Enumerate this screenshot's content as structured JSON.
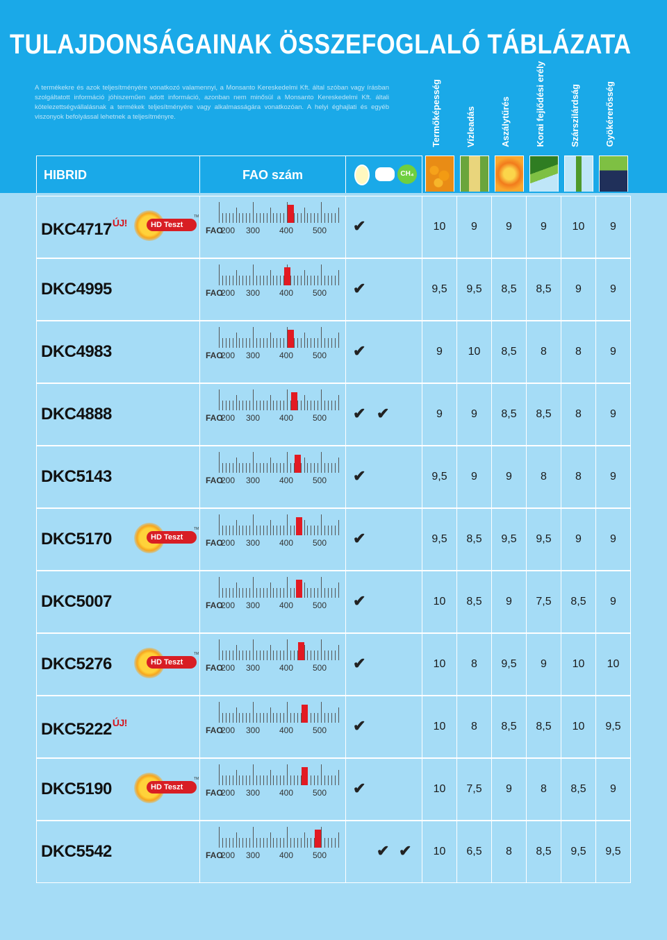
{
  "header": {
    "title": "TULAJDONSÁGAINAK ÖSSZEFOGLALÓ TÁBLÁZATA",
    "disclaimer": "A termékekre és azok teljesítményére vonatkozó valamennyi, a Monsanto Kereskedelmi Kft. által szóban vagy írásban szolgáltatott információ jóhiszeműen adott információ, azonban nem minősül a Monsanto Kereskedelmi Kft. általi kötelezettségvállalásnak a termékek teljesítményére vagy alkalmasságára vonatkozóan. A helyi éghajlati és egyéb viszonyok befolyással lehetnek a teljesítményre."
  },
  "columns": {
    "hibrid": "HIBRID",
    "fao": "FAO szám",
    "ch4": "CH₄",
    "traits": [
      "Termőképesség",
      "Vízleadás",
      "Aszálytűrés",
      "Korai fejlődési erély",
      "Szárszilárdság",
      "Gyökérerősség"
    ]
  },
  "scale_labels": {
    "fao": "FAO",
    "l200": "200",
    "l300": "300",
    "l400": "400",
    "l500": "500"
  },
  "badges": {
    "new": "ÚJ!",
    "hd_logo": "HD Teszt",
    "hd_tm": "TM",
    "check": "✔"
  },
  "hybrids": [
    {
      "name": "DKC4717",
      "new": true,
      "hd": true,
      "fao": 410,
      "checks": [
        true,
        false
      ],
      "traits": [
        "10",
        "9",
        "9",
        "9",
        "10",
        "9"
      ]
    },
    {
      "name": "DKC4995",
      "new": false,
      "hd": false,
      "fao": 400,
      "checks": [
        true,
        false
      ],
      "traits": [
        "9,5",
        "9,5",
        "8,5",
        "8,5",
        "9",
        "9"
      ]
    },
    {
      "name": "DKC4983",
      "new": false,
      "hd": false,
      "fao": 410,
      "checks": [
        true,
        false
      ],
      "traits": [
        "9",
        "10",
        "8,5",
        "8",
        "8",
        "9"
      ]
    },
    {
      "name": "DKC4888",
      "new": false,
      "hd": false,
      "fao": 420,
      "checks": [
        true,
        true
      ],
      "traits": [
        "9",
        "9",
        "8,5",
        "8,5",
        "8",
        "9"
      ]
    },
    {
      "name": "DKC5143",
      "new": false,
      "hd": false,
      "fao": 430,
      "checks": [
        true,
        false
      ],
      "traits": [
        "9,5",
        "9",
        "9",
        "8",
        "8",
        "9"
      ]
    },
    {
      "name": "DKC5170",
      "new": false,
      "hd": true,
      "fao": 435,
      "checks": [
        true,
        false
      ],
      "traits": [
        "9,5",
        "8,5",
        "9,5",
        "9,5",
        "9",
        "9"
      ]
    },
    {
      "name": "DKC5007",
      "new": false,
      "hd": false,
      "fao": 435,
      "checks": [
        true,
        false
      ],
      "traits": [
        "10",
        "8,5",
        "9",
        "7,5",
        "8,5",
        "9"
      ]
    },
    {
      "name": "DKC5276",
      "new": false,
      "hd": true,
      "fao": 440,
      "checks": [
        true,
        false
      ],
      "traits": [
        "10",
        "8",
        "9,5",
        "9",
        "10",
        "10"
      ]
    },
    {
      "name": "DKC5222",
      "new": true,
      "hd": false,
      "fao": 450,
      "checks": [
        true,
        false
      ],
      "traits": [
        "10",
        "8",
        "8,5",
        "8,5",
        "10",
        "9,5"
      ]
    },
    {
      "name": "DKC5190",
      "new": false,
      "hd": true,
      "fao": 450,
      "checks": [
        true,
        false
      ],
      "traits": [
        "10",
        "7,5",
        "9",
        "8",
        "8,5",
        "9"
      ]
    },
    {
      "name": "DKC5542",
      "new": false,
      "hd": false,
      "fao": 490,
      "checks": [
        false,
        true
      ],
      "checks2": [
        true,
        true
      ],
      "traits": [
        "10",
        "6,5",
        "8",
        "8,5",
        "9,5",
        "9,5"
      ]
    }
  ],
  "colors": {
    "header_bg": "#1aa9e8",
    "body_bg": "#a5dcf6",
    "marker": "#e21a22",
    "new_red": "#d6141c"
  }
}
